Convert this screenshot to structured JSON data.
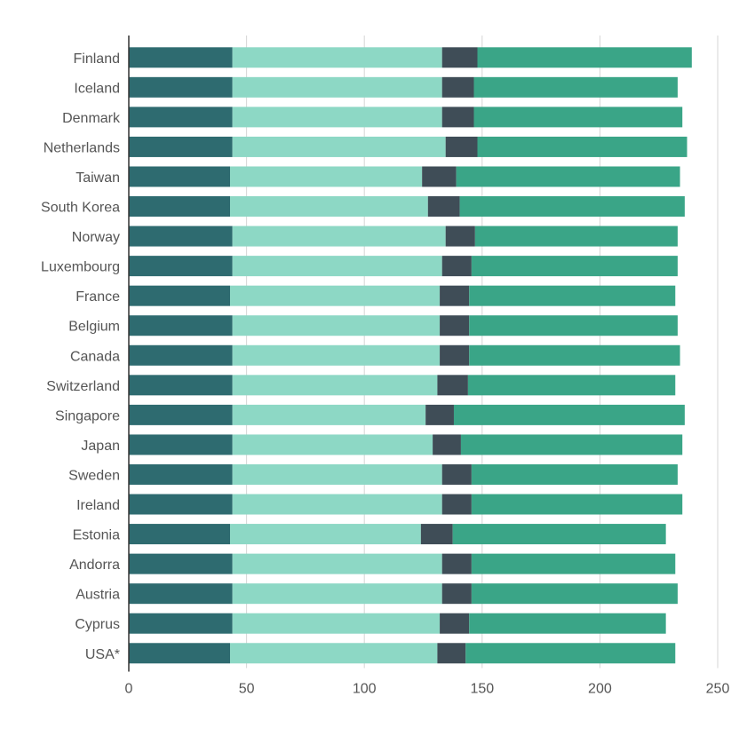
{
  "chart_data": {
    "type": "bar",
    "orientation": "horizontal",
    "stacked": true,
    "title": "",
    "xlabel": "",
    "ylabel": "",
    "xlim": [
      0,
      250
    ],
    "xticks": [
      0,
      50,
      100,
      150,
      200,
      250
    ],
    "grid": true,
    "legend": "none",
    "categories": [
      "Finland",
      "Iceland",
      "Denmark",
      "Netherlands",
      "Taiwan",
      "South Korea",
      "Norway",
      "Luxembourg",
      "France",
      "Belgium",
      "Canada",
      "Switzerland",
      "Singapore",
      "Japan",
      "Sweden",
      "Ireland",
      "Estonia",
      "Andorra",
      "Austria",
      "Cyprus",
      "USA*"
    ],
    "series": [
      {
        "color": "#2e6b70",
        "values": [
          44,
          44,
          44,
          44,
          43,
          43,
          44,
          44,
          43,
          44,
          44,
          44,
          44,
          44,
          44,
          44,
          43,
          44,
          44,
          44,
          43
        ]
      },
      {
        "color": "#8dd8c5",
        "values": [
          89,
          89,
          89,
          90.5,
          81.5,
          84,
          90.5,
          89,
          89,
          88,
          88,
          87,
          82,
          85,
          89,
          89,
          81,
          89,
          89,
          88,
          88
        ]
      },
      {
        "color": "#3f4d57",
        "values": [
          15,
          13.5,
          13.5,
          13.5,
          14.5,
          13.5,
          12.5,
          12.5,
          12.5,
          12.5,
          12.5,
          13,
          12,
          12,
          12.5,
          12.5,
          13.5,
          12.5,
          12.5,
          12.5,
          12
        ]
      },
      {
        "color": "#3aa587",
        "values": [
          91,
          86.5,
          88.5,
          89,
          95,
          95.5,
          86,
          87.5,
          87.5,
          88.5,
          89.5,
          88,
          98,
          94,
          87.5,
          89.5,
          90.5,
          86.5,
          87.5,
          83.5,
          89
        ]
      }
    ]
  }
}
